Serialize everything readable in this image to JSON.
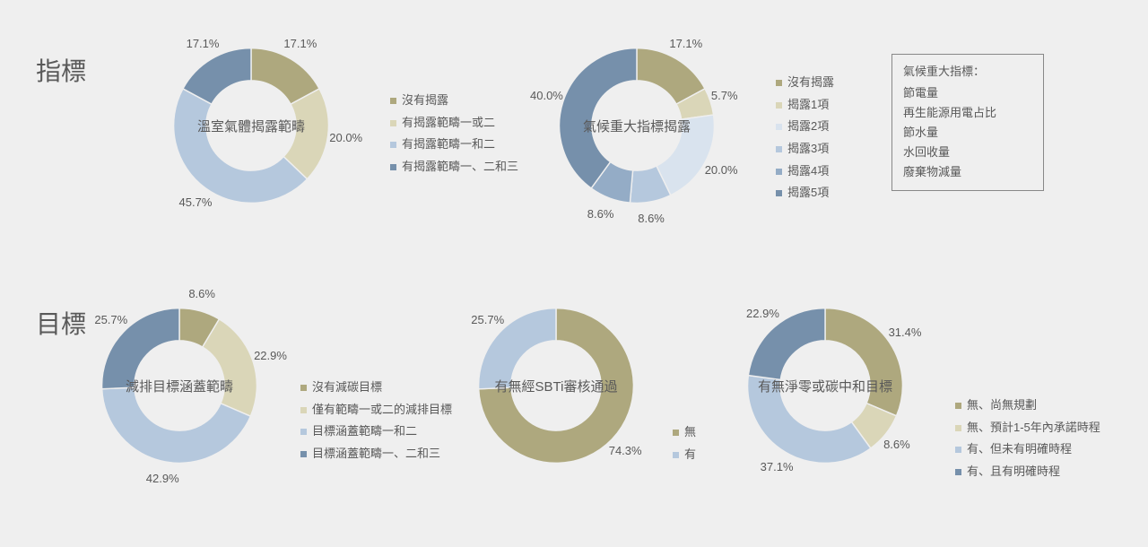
{
  "background_color": "#efefef",
  "text_color": "#595959",
  "sections": {
    "top": "指標",
    "bottom": "目標"
  },
  "charts": {
    "chart1": {
      "type": "donut",
      "title": "溫室氣體揭露範疇",
      "inner_radius_pct": 58,
      "slices": [
        {
          "label": "沒有揭露",
          "value": 17.1,
          "color": "#aea87e",
          "text": "17.1%"
        },
        {
          "label": "有揭露範疇一或二",
          "value": 20.0,
          "color": "#dad6b8",
          "text": "20.0%"
        },
        {
          "label": "有揭露範疇一和二",
          "value": 45.7,
          "color": "#b5c8dd",
          "text": "45.7%"
        },
        {
          "label": "有揭露範疇一、二和三",
          "value": 17.1,
          "color": "#7690ab",
          "text": "17.1%"
        }
      ]
    },
    "chart2": {
      "type": "donut",
      "title": "氣候重大指標揭露",
      "inner_radius_pct": 58,
      "slices": [
        {
          "label": "沒有揭露",
          "value": 17.1,
          "color": "#aea87e",
          "text": "17.1%"
        },
        {
          "label": "揭露1項",
          "value": 5.7,
          "color": "#dad6b8",
          "text": "5.7%"
        },
        {
          "label": "揭露2項",
          "value": 20.0,
          "color": "#d9e3ee",
          "text": "20.0%"
        },
        {
          "label": "揭露3項",
          "value": 8.6,
          "color": "#b5c8dd",
          "text": "8.6%"
        },
        {
          "label": "揭露4項",
          "value": 8.6,
          "color": "#94acc6",
          "text": "8.6%"
        },
        {
          "label": "揭露5項",
          "value": 40.0,
          "color": "#7690ab",
          "text": "40.0%"
        }
      ]
    },
    "chart3": {
      "type": "donut",
      "title": "減排目標涵蓋範疇",
      "inner_radius_pct": 58,
      "slices": [
        {
          "label": "沒有減碳目標",
          "value": 8.6,
          "color": "#aea87e",
          "text": "8.6%"
        },
        {
          "label": "僅有範疇一或二的減排目標",
          "value": 22.9,
          "color": "#dad6b8",
          "text": "22.9%"
        },
        {
          "label": "目標涵蓋範疇一和二",
          "value": 42.9,
          "color": "#b5c8dd",
          "text": "42.9%"
        },
        {
          "label": "目標涵蓋範疇一、二和三",
          "value": 25.7,
          "color": "#7690ab",
          "text": "25.7%"
        }
      ]
    },
    "chart4": {
      "type": "donut",
      "title": "有無經SBTi審核通過",
      "inner_radius_pct": 58,
      "slices": [
        {
          "label": "無",
          "value": 74.3,
          "color": "#aea87e",
          "text": "74.3%"
        },
        {
          "label": "有",
          "value": 25.7,
          "color": "#b5c8dd",
          "text": "25.7%"
        }
      ]
    },
    "chart5": {
      "type": "donut",
      "title": "有無淨零或碳中和目標",
      "inner_radius_pct": 58,
      "slices": [
        {
          "label": "無、尚無規劃",
          "value": 31.4,
          "color": "#aea87e",
          "text": "31.4%"
        },
        {
          "label": "無、預計1-5年內承諾時程",
          "value": 8.6,
          "color": "#dad6b8",
          "text": "8.6%"
        },
        {
          "label": "有、但未有明確時程",
          "value": 37.1,
          "color": "#b5c8dd",
          "text": "37.1%"
        },
        {
          "label": "有、且有明確時程",
          "value": 22.9,
          "color": "#7690ab",
          "text": "22.9%"
        }
      ]
    }
  },
  "info_box": {
    "title": "氣候重大指標：",
    "items": [
      "節電量",
      "再生能源用電占比",
      "節水量",
      "水回收量",
      "廢棄物減量"
    ]
  }
}
